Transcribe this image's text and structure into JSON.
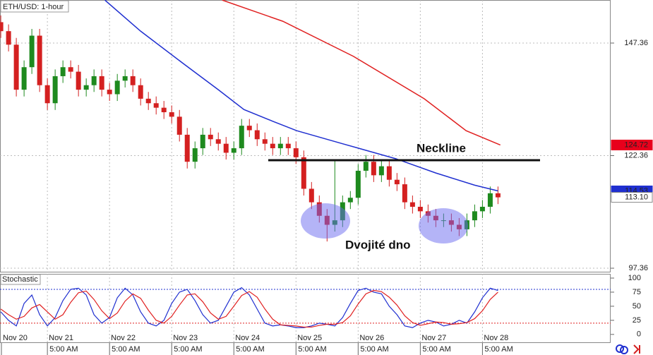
{
  "chart_data": [
    {
      "type": "candlestick",
      "title": "ETH/USD: 1-hour",
      "categories": [
        null,
        null,
        null,
        null,
        null,
        null,
        null,
        null,
        null,
        null,
        null,
        null,
        null,
        null,
        null,
        null,
        null,
        null,
        null,
        null,
        null,
        null,
        null,
        null,
        null,
        null,
        null,
        null,
        null,
        null,
        null,
        null,
        null,
        null,
        null,
        null,
        null,
        null,
        null,
        null,
        null,
        null,
        null,
        null,
        null,
        null,
        null,
        null,
        null,
        null,
        null,
        null,
        null,
        null,
        null,
        null,
        null,
        null,
        null,
        null,
        null,
        null,
        null,
        null,
        null
      ],
      "open": [
        152,
        150,
        147,
        137,
        142,
        149,
        138,
        134,
        140,
        142,
        141,
        137,
        138,
        140,
        137,
        136,
        139,
        140,
        138,
        135,
        134,
        133,
        132,
        131,
        127,
        121,
        124,
        127,
        126,
        125,
        123,
        124,
        129,
        128,
        126,
        125,
        124,
        125,
        124,
        122,
        115,
        112,
        109,
        107,
        108,
        112,
        113,
        119,
        121,
        118,
        120,
        117,
        116,
        112,
        111,
        110,
        109,
        108,
        108,
        107,
        106,
        108,
        110,
        111,
        114
      ],
      "high": [
        153.5,
        151.5,
        148.5,
        143.5,
        150.5,
        150.5,
        139.5,
        141.5,
        143.5,
        143.5,
        142.5,
        139.5,
        141.5,
        141.5,
        138.5,
        140.5,
        141.5,
        141.5,
        139.5,
        136.5,
        135.5,
        134.5,
        133.5,
        132.5,
        128.5,
        125.5,
        128.5,
        128.5,
        127.5,
        126.5,
        125.5,
        130.5,
        130.5,
        129.5,
        127.5,
        126.5,
        126.5,
        126.5,
        125.5,
        123.5,
        116.5,
        113.5,
        110.5,
        121.2,
        113.5,
        114.5,
        120.5,
        122.5,
        122.5,
        121.5,
        121.5,
        118.5,
        117.5,
        113.5,
        112.5,
        111.5,
        110.5,
        109.5,
        109.5,
        108.5,
        109.5,
        111.5,
        112.5,
        115.5,
        115.5
      ],
      "low": [
        148.5,
        145.5,
        135.5,
        135.5,
        140.5,
        136.5,
        132.5,
        132.5,
        138.5,
        139.5,
        135.5,
        135.5,
        136.5,
        135.5,
        134.5,
        134.5,
        137.5,
        136.5,
        133.5,
        132.5,
        131.5,
        130.5,
        129.5,
        125.5,
        119.5,
        119.5,
        122.5,
        124.5,
        123.5,
        121.5,
        121.5,
        122.5,
        126.5,
        124.5,
        123.5,
        122.5,
        122.5,
        122.5,
        120.5,
        113.5,
        110.5,
        107.5,
        103.3,
        105.5,
        106.5,
        110.5,
        111.5,
        117.5,
        116.5,
        116.5,
        115.5,
        114.5,
        110.5,
        109.5,
        108.5,
        107.5,
        106.5,
        106.5,
        105.5,
        104.5,
        104.5,
        106.5,
        108.5,
        109.5,
        111.6
      ],
      "close": [
        150,
        147,
        137,
        142,
        149,
        138,
        134,
        140,
        142,
        141,
        137,
        138,
        140,
        137,
        136,
        139,
        140,
        138,
        135,
        134,
        133,
        132,
        131,
        127,
        121,
        124,
        127,
        126,
        125,
        123,
        124,
        129,
        128,
        126,
        125,
        124,
        125,
        124,
        122,
        115,
        112,
        109,
        107,
        108,
        112,
        113,
        119,
        121,
        118,
        120,
        117,
        116,
        112,
        111,
        110,
        109,
        108,
        108,
        107,
        106,
        108,
        110,
        111,
        114,
        113.1
      ],
      "up_color": "#1e8a1e",
      "down_color": "#d42020",
      "lines": [
        {
          "color": "#1f2fd0",
          "x": [
            13.4,
            18,
            23.5,
            28,
            31.3,
            35,
            38.1,
            44,
            50.8,
            56,
            61,
            64
          ],
          "values": [
            156.9,
            150,
            142.8,
            137,
            132.6,
            130,
            127.9,
            125,
            121.7,
            118.5,
            115.8,
            114.53
          ]
        },
        {
          "color": "#e02020",
          "x": [
            28.5,
            36.3,
            45.4,
            54.5,
            59.9,
            64.3
          ],
          "values": [
            156.9,
            152.2,
            144.4,
            135,
            127.9,
            124.72
          ]
        }
      ],
      "tags": [
        {
          "value": 124.72,
          "color": "#e8001c"
        },
        {
          "value": 114.53,
          "color": "#1f2fd0"
        },
        {
          "value": {
            "value": 113.1,
            "label": "113.10"
          },
          "color": "#ffffff"
        }
      ],
      "annotations": [
        "Neckline",
        "Dvojité dno"
      ],
      "xlim": [
        -0.1,
        78.5
      ],
      "ylim": [
        96.58,
        156.92
      ],
      "yticks": [
        97.36,
        122.36,
        147.36
      ],
      "xticks": [
        {
          "value": -2,
          "label": "Nov 20"
        },
        {
          "value": 6,
          "label": "Nov 21"
        },
        {
          "value": 14,
          "label": "Nov 22"
        },
        {
          "value": 22,
          "label": "Nov 23"
        },
        {
          "value": 30,
          "label": "Nov 24"
        },
        {
          "value": 38,
          "label": "Nov 25"
        },
        {
          "value": 46,
          "label": "Nov 26"
        },
        {
          "value": 54,
          "label": "Nov 27"
        },
        {
          "value": 62,
          "label": "Nov 28"
        }
      ],
      "x_sublabel": "5:00 AM",
      "grid": true
    },
    {
      "type": "stochastic",
      "title": "Stochastic",
      "series": [
        {
          "color": "#1f2fd0",
          "values": [
            40,
            25,
            15,
            55,
            70,
            35,
            15,
            30,
            60,
            80,
            82,
            70,
            35,
            20,
            30,
            65,
            82,
            70,
            40,
            20,
            15,
            25,
            55,
            75,
            80,
            60,
            35,
            20,
            25,
            50,
            75,
            83,
            70,
            45,
            20,
            15,
            17,
            15,
            12,
            12,
            15,
            20,
            18,
            15,
            30,
            55,
            78,
            82,
            75,
            72,
            50,
            35,
            15,
            12,
            20,
            25,
            22,
            15,
            18,
            25,
            20,
            40,
            65,
            82,
            78
          ]
        },
        {
          "color": "#e02020",
          "values": [
            45,
            35,
            27,
            32,
            47,
            53,
            40,
            27,
            35,
            57,
            74,
            77,
            62,
            42,
            28,
            38,
            59,
            72,
            64,
            43,
            25,
            20,
            32,
            52,
            70,
            72,
            58,
            38,
            27,
            32,
            50,
            69,
            76,
            66,
            45,
            27,
            17,
            16,
            15,
            13,
            13,
            16,
            18,
            18,
            21,
            33,
            54,
            72,
            78,
            76,
            66,
            52,
            33,
            21,
            16,
            19,
            22,
            21,
            18,
            19,
            21,
            28,
            42,
            62,
            75
          ]
        }
      ],
      "levels": [
        80,
        20
      ],
      "level_colors": [
        "#1f2fd0",
        "#e02020"
      ],
      "ylim": [
        -14,
        107.5
      ],
      "yticks": [
        0,
        25,
        50,
        75,
        100
      ]
    }
  ]
}
